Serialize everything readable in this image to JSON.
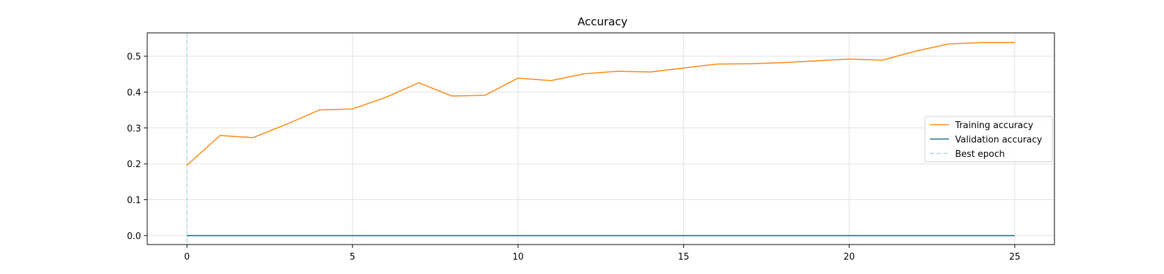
{
  "chart_data": {
    "type": "line",
    "title": "Accuracy",
    "xlabel": "",
    "ylabel": "",
    "xlim": [
      -1.2,
      26.2
    ],
    "ylim": [
      -0.025,
      0.565
    ],
    "xticks": [
      0,
      5,
      10,
      15,
      20,
      25
    ],
    "yticks": [
      0.0,
      0.1,
      0.2,
      0.3,
      0.4,
      0.5
    ],
    "xtick_labels": [
      "0",
      "5",
      "10",
      "15",
      "20",
      "25"
    ],
    "ytick_labels": [
      "0.0",
      "0.1",
      "0.2",
      "0.3",
      "0.4",
      "0.5"
    ],
    "grid": true,
    "legend_position": "center-right",
    "x": [
      0,
      1,
      2,
      3,
      4,
      5,
      6,
      7,
      8,
      9,
      10,
      11,
      12,
      13,
      14,
      15,
      16,
      17,
      18,
      19,
      20,
      21,
      22,
      23,
      24,
      25
    ],
    "series": [
      {
        "name": "Training accuracy",
        "color": "#ff8c1a",
        "style": "solid",
        "values": [
          0.196,
          0.279,
          0.273,
          0.31,
          0.35,
          0.353,
          0.385,
          0.426,
          0.389,
          0.391,
          0.439,
          0.432,
          0.451,
          0.458,
          0.456,
          0.467,
          0.478,
          0.479,
          0.482,
          0.487,
          0.492,
          0.489,
          0.514,
          0.534,
          0.538,
          0.538
        ]
      },
      {
        "name": "Validation accuracy",
        "color": "#1f6f94",
        "style": "solid",
        "values": [
          0,
          0,
          0,
          0,
          0,
          0,
          0,
          0,
          0,
          0,
          0,
          0,
          0,
          0,
          0,
          0,
          0,
          0,
          0,
          0,
          0,
          0,
          0,
          0,
          0,
          0
        ]
      }
    ],
    "best_epoch": {
      "name": "Best epoch",
      "x": 0,
      "color": "#a9d8df",
      "style": "dashed"
    }
  }
}
